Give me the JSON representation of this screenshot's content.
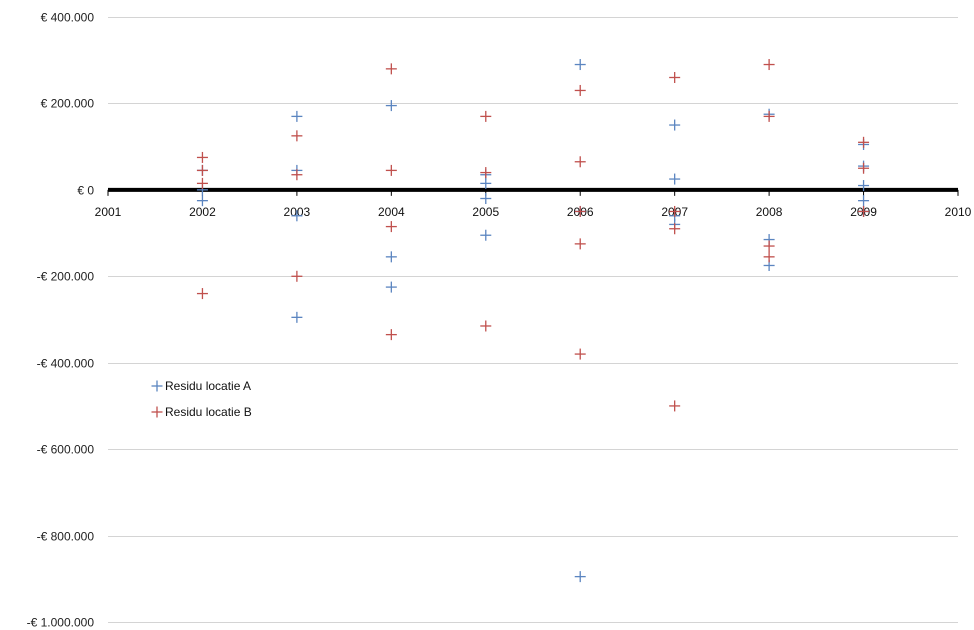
{
  "chart_data": {
    "type": "scatter",
    "title": "",
    "xlabel": "",
    "ylabel": "",
    "xlim": [
      2001,
      2010
    ],
    "ylim": [
      -1000000,
      400000
    ],
    "x_ticks": [
      2001,
      2002,
      2003,
      2004,
      2005,
      2006,
      2007,
      2008,
      2009,
      2010
    ],
    "y_ticks": [
      400000,
      200000,
      0,
      -200000,
      -400000,
      -600000,
      -800000,
      -1000000
    ],
    "y_tick_labels": [
      "€ 400.000",
      "€ 200.000",
      "€ 0",
      "-€ 200.000",
      "-€ 400.000",
      "-€ 600.000",
      "-€ 800.000",
      "-€ 1.000.000"
    ],
    "grid": "horizontal",
    "legend_position": "left",
    "marker": "+",
    "series": [
      {
        "name": "Residu locatie A",
        "color": "#5b85c0",
        "points": [
          [
            2002,
            45000
          ],
          [
            2002,
            0
          ],
          [
            2002,
            -25000
          ],
          [
            2003,
            170000
          ],
          [
            2003,
            45000
          ],
          [
            2003,
            -60000
          ],
          [
            2003,
            -295000
          ],
          [
            2004,
            195000
          ],
          [
            2004,
            -155000
          ],
          [
            2004,
            -225000
          ],
          [
            2005,
            35000
          ],
          [
            2005,
            15000
          ],
          [
            2005,
            -20000
          ],
          [
            2005,
            -105000
          ],
          [
            2006,
            290000
          ],
          [
            2006,
            -50000
          ],
          [
            2006,
            -895000
          ],
          [
            2007,
            150000
          ],
          [
            2007,
            25000
          ],
          [
            2007,
            -60000
          ],
          [
            2007,
            -80000
          ],
          [
            2008,
            175000
          ],
          [
            2008,
            -115000
          ],
          [
            2008,
            -175000
          ],
          [
            2009,
            105000
          ],
          [
            2009,
            55000
          ],
          [
            2009,
            10000
          ],
          [
            2009,
            -25000
          ],
          [
            2009,
            -50000
          ]
        ]
      },
      {
        "name": "Residu locatie B",
        "color": "#c0504d",
        "points": [
          [
            2002,
            75000
          ],
          [
            2002,
            45000
          ],
          [
            2002,
            15000
          ],
          [
            2002,
            -240000
          ],
          [
            2003,
            125000
          ],
          [
            2003,
            35000
          ],
          [
            2003,
            -200000
          ],
          [
            2004,
            280000
          ],
          [
            2004,
            45000
          ],
          [
            2004,
            -85000
          ],
          [
            2004,
            -335000
          ],
          [
            2005,
            170000
          ],
          [
            2005,
            40000
          ],
          [
            2005,
            -315000
          ],
          [
            2006,
            230000
          ],
          [
            2006,
            65000
          ],
          [
            2006,
            -50000
          ],
          [
            2006,
            -125000
          ],
          [
            2006,
            -380000
          ],
          [
            2007,
            260000
          ],
          [
            2007,
            -50000
          ],
          [
            2007,
            -90000
          ],
          [
            2007,
            -500000
          ],
          [
            2008,
            290000
          ],
          [
            2008,
            170000
          ],
          [
            2008,
            -130000
          ],
          [
            2008,
            -155000
          ],
          [
            2009,
            110000
          ],
          [
            2009,
            50000
          ],
          [
            2009,
            -50000
          ]
        ]
      }
    ]
  }
}
